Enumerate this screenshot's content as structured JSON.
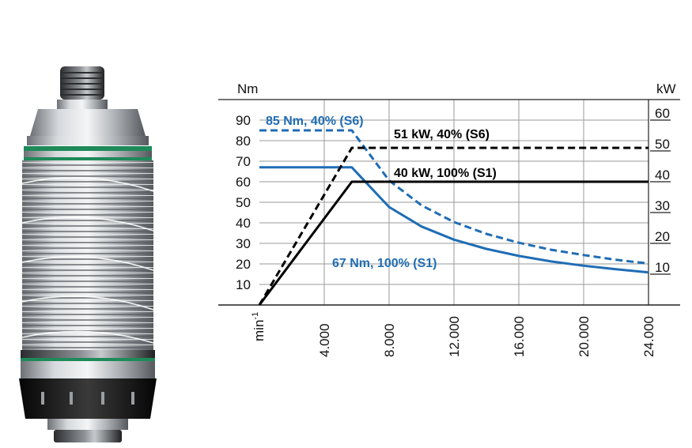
{
  "chart_data": {
    "type": "line",
    "title": "",
    "xlabel": "min",
    "xlabel_superscript": "-1",
    "ylabel_left": "Nm",
    "ylabel_right": "kW",
    "xlim": [
      0,
      24000
    ],
    "ylim_left": [
      0,
      100
    ],
    "ylim_right": [
      0,
      66.67
    ],
    "grid": true,
    "x_ticks": [
      {
        "value": 4000,
        "label": "4.000"
      },
      {
        "value": 8000,
        "label": "8.000"
      },
      {
        "value": 12000,
        "label": "12.000"
      },
      {
        "value": 16000,
        "label": "16.000"
      },
      {
        "value": 20000,
        "label": "20.000"
      },
      {
        "value": 24000,
        "label": "24.000"
      }
    ],
    "y_ticks_left": [
      {
        "value": 10,
        "label": "10"
      },
      {
        "value": 20,
        "label": "20"
      },
      {
        "value": 30,
        "label": "30"
      },
      {
        "value": 40,
        "label": "40"
      },
      {
        "value": 50,
        "label": "50"
      },
      {
        "value": 60,
        "label": "60"
      },
      {
        "value": 70,
        "label": "70"
      },
      {
        "value": 80,
        "label": "80"
      },
      {
        "value": 90,
        "label": "90"
      }
    ],
    "y_ticks_right": [
      {
        "value": 10,
        "label": "10"
      },
      {
        "value": 20,
        "label": "20"
      },
      {
        "value": 30,
        "label": "30"
      },
      {
        "value": 40,
        "label": "40"
      },
      {
        "value": 50,
        "label": "50"
      },
      {
        "value": 60,
        "label": "60"
      }
    ],
    "series": [
      {
        "label": "85 Nm, 40% (S6)",
        "axis": "left",
        "quantity": "torque",
        "color": "#1f6db5",
        "dash": true,
        "x": [
          0,
          5700,
          8000,
          10000,
          12000,
          14000,
          16000,
          18000,
          20000,
          22000,
          24000
        ],
        "y": [
          85,
          85,
          60.6,
          48.5,
          40.4,
          34.6,
          30.3,
          26.9,
          24.3,
          22.0,
          20.2
        ]
      },
      {
        "label": "67 Nm, 100% (S1)",
        "axis": "left",
        "quantity": "torque",
        "color": "#1f6db5",
        "dash": false,
        "x": [
          0,
          5700,
          8000,
          10000,
          12000,
          14000,
          16000,
          18000,
          20000,
          22000,
          24000
        ],
        "y": [
          67,
          67,
          47.7,
          38.2,
          31.8,
          27.3,
          23.9,
          21.2,
          19.1,
          17.4,
          15.9
        ]
      },
      {
        "label": "51 kW, 40% (S6)",
        "axis": "right",
        "quantity": "power",
        "color": "#000000",
        "dash": true,
        "x": [
          0,
          5700,
          24000
        ],
        "y": [
          0,
          51,
          51
        ]
      },
      {
        "label": "40 kW, 100% (S1)",
        "axis": "right",
        "quantity": "power",
        "color": "#000000",
        "dash": false,
        "x": [
          0,
          5700,
          24000
        ],
        "y": [
          0,
          40,
          40
        ]
      }
    ]
  },
  "image": {
    "subject_icon": "motor-spindle-icon",
    "colors": {
      "ring": "#1e8a5a",
      "steel": "#b8bcc0",
      "dark": "#1a1a1a"
    }
  }
}
